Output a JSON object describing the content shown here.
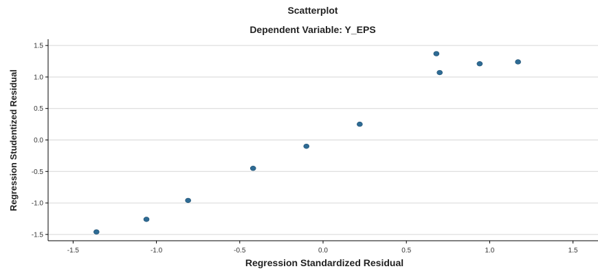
{
  "chart_data": {
    "type": "scatter",
    "title": "Scatterplot",
    "subtitle": "Dependent Variable: Y_EPS",
    "xlabel": "Regression Standardized Residual",
    "ylabel": "Regression Studentized Residual",
    "xlim": [
      -1.65,
      1.65
    ],
    "ylim": [
      -1.6,
      1.6
    ],
    "x_ticks": [
      -1.5,
      -1.0,
      -0.5,
      0.0,
      0.5,
      1.0,
      1.5
    ],
    "x_tick_labels": [
      "-1.5",
      "-1.0",
      "-0.5",
      "0.0",
      "0.5",
      "1.0",
      "1.5"
    ],
    "y_ticks": [
      1.5,
      1.0,
      0.5,
      0.0,
      -0.5,
      -1.0,
      -1.5
    ],
    "y_tick_labels": [
      "1.5",
      "1.0",
      "0.5",
      "0.0",
      "-0.5",
      "-1.0",
      "-1.5"
    ],
    "grid": "horizontal",
    "colors": {
      "point": "#2e6b94",
      "grid": "#d6d6d6",
      "axis": "#000000"
    },
    "points": [
      {
        "x": -1.36,
        "y": -1.46
      },
      {
        "x": -1.06,
        "y": -1.26
      },
      {
        "x": -0.81,
        "y": -0.96
      },
      {
        "x": -0.42,
        "y": -0.45
      },
      {
        "x": -0.1,
        "y": -0.1
      },
      {
        "x": 0.22,
        "y": 0.25
      },
      {
        "x": 0.68,
        "y": 1.37
      },
      {
        "x": 0.7,
        "y": 1.07
      },
      {
        "x": 0.94,
        "y": 1.21
      },
      {
        "x": 1.17,
        "y": 1.24
      }
    ]
  }
}
